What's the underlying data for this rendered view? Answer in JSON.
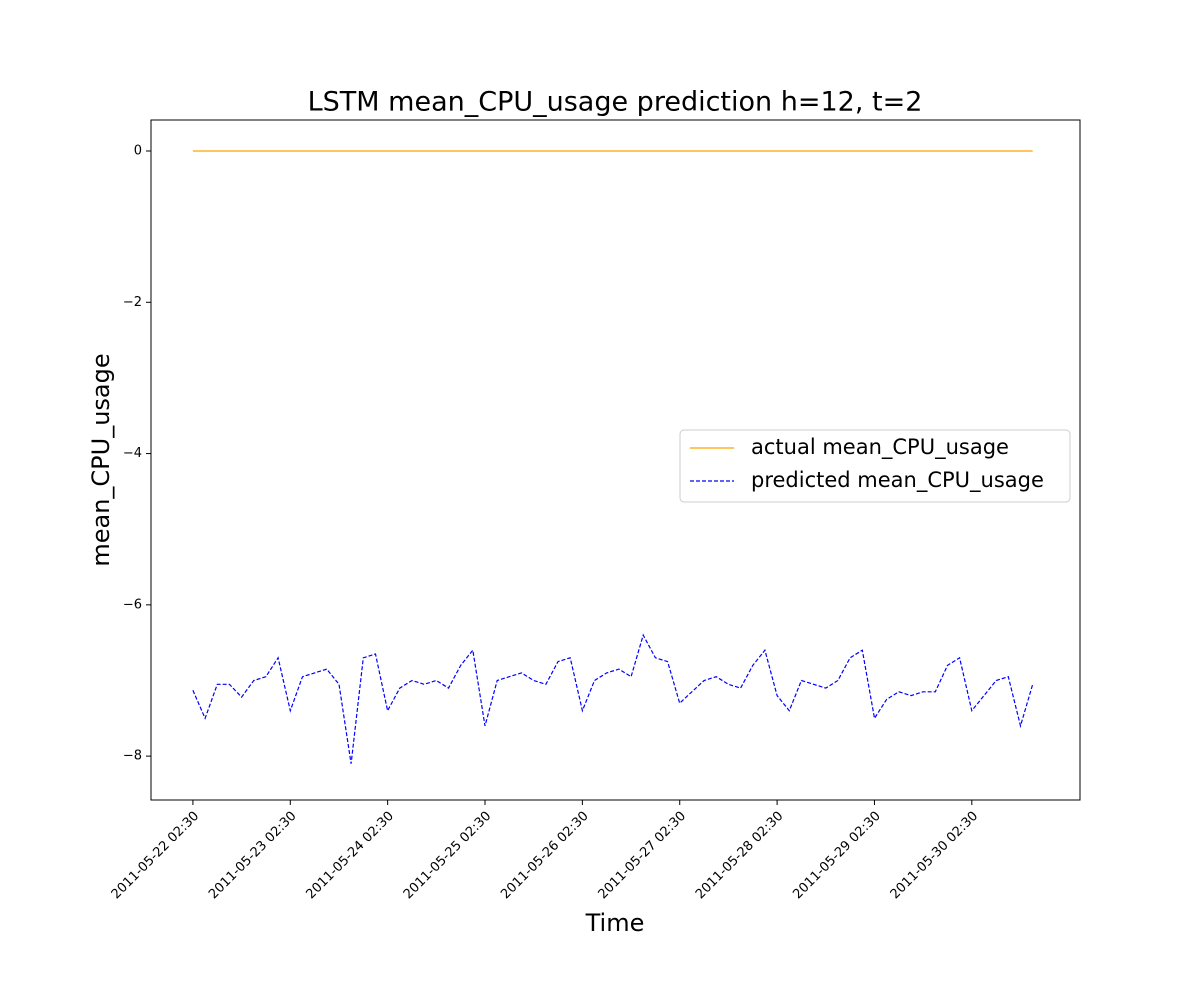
{
  "chart_data": {
    "type": "line",
    "title": "LSTM mean_CPU_usage prediction h=12, t=2",
    "x_label": "Time",
    "y_label": "mean_CPU_usage",
    "x": [
      "2011-05-22 02:30",
      "2011-05-22 05:30",
      "2011-05-22 08:30",
      "2011-05-22 11:30",
      "2011-05-22 14:30",
      "2011-05-22 17:30",
      "2011-05-22 20:30",
      "2011-05-22 23:30",
      "2011-05-23 02:30",
      "2011-05-23 05:30",
      "2011-05-23 08:30",
      "2011-05-23 11:30",
      "2011-05-23 14:30",
      "2011-05-23 17:30",
      "2011-05-23 20:30",
      "2011-05-23 23:30",
      "2011-05-24 02:30",
      "2011-05-24 05:30",
      "2011-05-24 08:30",
      "2011-05-24 11:30",
      "2011-05-24 14:30",
      "2011-05-24 17:30",
      "2011-05-24 20:30",
      "2011-05-24 23:30",
      "2011-05-25 02:30",
      "2011-05-25 05:30",
      "2011-05-25 08:30",
      "2011-05-25 11:30",
      "2011-05-25 14:30",
      "2011-05-25 17:30",
      "2011-05-25 20:30",
      "2011-05-25 23:30",
      "2011-05-26 02:30",
      "2011-05-26 05:30",
      "2011-05-26 08:30",
      "2011-05-26 11:30",
      "2011-05-26 14:30",
      "2011-05-26 17:30",
      "2011-05-26 20:30",
      "2011-05-26 23:30",
      "2011-05-27 02:30",
      "2011-05-27 05:30",
      "2011-05-27 08:30",
      "2011-05-27 11:30",
      "2011-05-27 14:30",
      "2011-05-27 17:30",
      "2011-05-27 20:30",
      "2011-05-27 23:30",
      "2011-05-28 02:30",
      "2011-05-28 05:30",
      "2011-05-28 08:30",
      "2011-05-28 11:30",
      "2011-05-28 14:30",
      "2011-05-28 17:30",
      "2011-05-28 20:30",
      "2011-05-28 23:30",
      "2011-05-29 02:30",
      "2011-05-29 05:30",
      "2011-05-29 08:30",
      "2011-05-29 11:30",
      "2011-05-29 14:30",
      "2011-05-29 17:30",
      "2011-05-29 20:30",
      "2011-05-29 23:30",
      "2011-05-30 02:30",
      "2011-05-30 05:30",
      "2011-05-30 08:30",
      "2011-05-30 11:30",
      "2011-05-30 14:30",
      "2011-05-30 17:30"
    ],
    "series": [
      {
        "name": "actual mean_CPU_usage",
        "color": "#ffa500",
        "dash": false,
        "values": [
          0,
          0,
          0,
          0,
          0,
          0,
          0,
          0,
          0,
          0,
          0,
          0,
          0,
          0,
          0,
          0,
          0,
          0,
          0,
          0,
          0,
          0,
          0,
          0,
          0,
          0,
          0,
          0,
          0,
          0,
          0,
          0,
          0,
          0,
          0,
          0,
          0,
          0,
          0,
          0,
          0,
          0,
          0,
          0,
          0,
          0,
          0,
          0,
          0,
          0,
          0,
          0,
          0,
          0,
          0,
          0,
          0,
          0,
          0,
          0,
          0,
          0,
          0,
          0,
          0,
          0,
          0,
          0,
          0,
          0
        ]
      },
      {
        "name": "predicted mean_CPU_usage",
        "color": "#0000ff",
        "dash": true,
        "values": [
          -7.13,
          -7.5,
          -7.05,
          -7.05,
          -7.22,
          -7.0,
          -6.95,
          -6.7,
          -7.4,
          -6.95,
          -6.9,
          -6.85,
          -7.05,
          -8.1,
          -6.7,
          -6.65,
          -7.4,
          -7.1,
          -7.0,
          -7.05,
          -7.0,
          -7.1,
          -6.8,
          -6.6,
          -7.6,
          -7.0,
          -6.95,
          -6.9,
          -7.0,
          -7.05,
          -6.75,
          -6.7,
          -7.4,
          -7.0,
          -6.9,
          -6.85,
          -6.95,
          -6.4,
          -6.7,
          -6.75,
          -7.3,
          -7.15,
          -7.0,
          -6.95,
          -7.05,
          -7.1,
          -6.8,
          -6.6,
          -7.2,
          -7.4,
          -7.0,
          -7.05,
          -7.1,
          -7.0,
          -6.7,
          -6.6,
          -7.5,
          -7.25,
          -7.15,
          -7.2,
          -7.15,
          -7.15,
          -6.8,
          -6.7,
          -7.4,
          -7.2,
          -7.0,
          -6.95,
          -7.6,
          -7.05
        ]
      }
    ],
    "xlim": [
      "2011-05-21 16:10",
      "2011-05-31 05:10"
    ],
    "xticks": [
      "2011-05-22 02:30",
      "2011-05-23 02:30",
      "2011-05-24 02:30",
      "2011-05-25 02:30",
      "2011-05-26 02:30",
      "2011-05-27 02:30",
      "2011-05-28 02:30",
      "2011-05-29 02:30",
      "2011-05-30 02:30"
    ],
    "ylim": [
      -8.58,
      0.41
    ],
    "yticks": [
      {
        "value": -8,
        "label": "−8"
      },
      {
        "value": -6,
        "label": "−6"
      },
      {
        "value": -4,
        "label": "−4"
      },
      {
        "value": -2,
        "label": "−2"
      },
      0
    ],
    "legend": "center right"
  }
}
